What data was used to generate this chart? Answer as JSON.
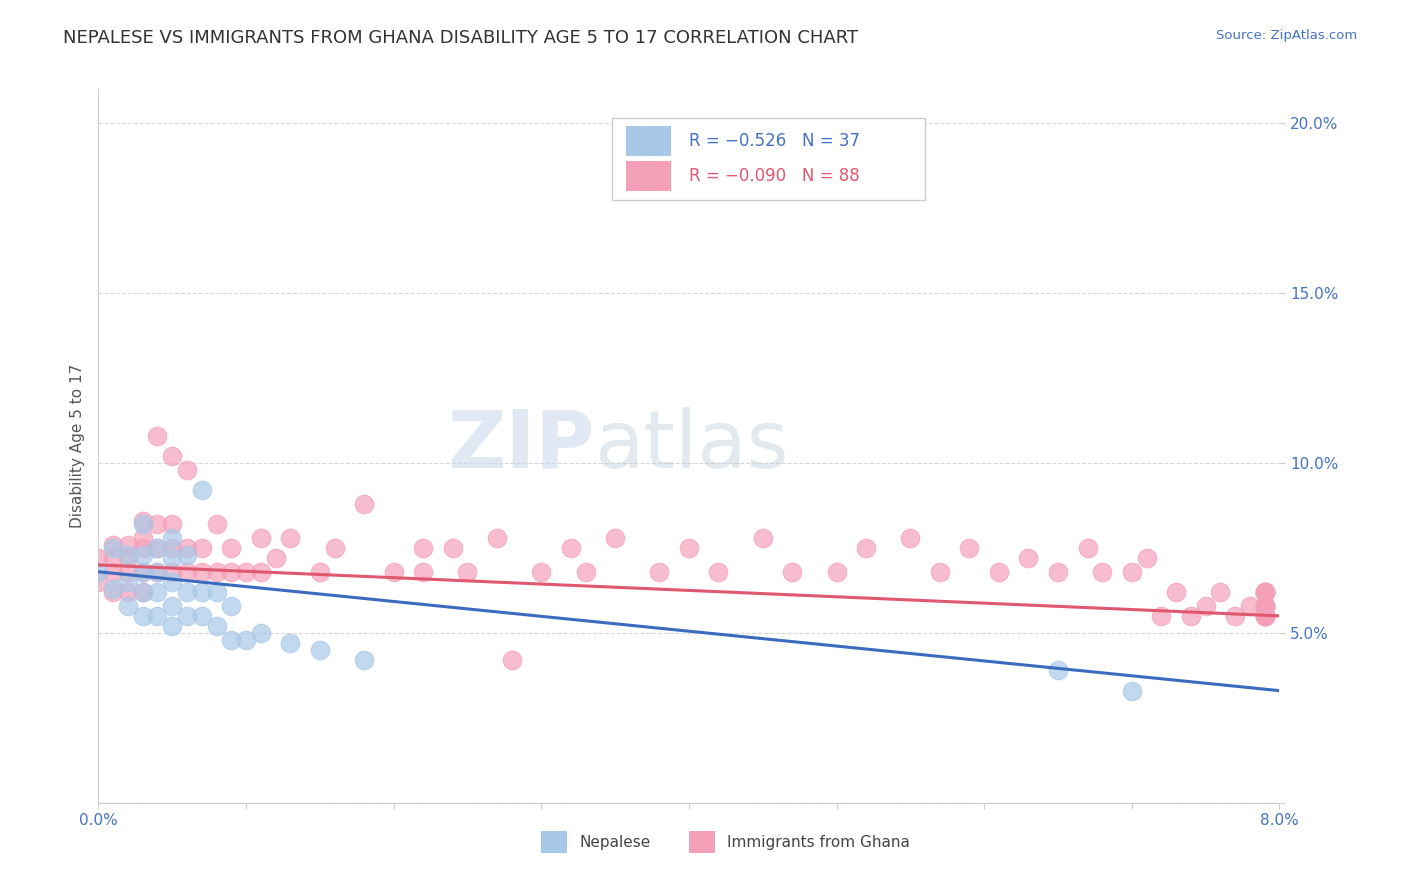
{
  "title": "NEPALESE VS IMMIGRANTS FROM GHANA DISABILITY AGE 5 TO 17 CORRELATION CHART",
  "source_text": "Source: ZipAtlas.com",
  "ylabel": "Disability Age 5 to 17",
  "xlim": [
    0.0,
    0.08
  ],
  "ylim": [
    0.0,
    0.21
  ],
  "legend_label1": "R = −0.526   N = 37",
  "legend_label2": "R = −0.090   N = 88",
  "legend_names": [
    "Nepalese",
    "Immigrants from Ghana"
  ],
  "blue_scatter_color": "#a8c8e8",
  "pink_scatter_color": "#f4a0b8",
  "blue_line_color": "#3a6bbf",
  "pink_line_color": "#e05870",
  "watermark_color": "#c8d8ea",
  "grid_color": "#d8d8d8",
  "title_fontsize": 13,
  "axis_label_fontsize": 11,
  "tick_fontsize": 11,
  "tick_color": "#4472c4",
  "title_color": "#333333",
  "nepalese_x": [
    0.0,
    0.001,
    0.001,
    0.002,
    0.002,
    0.002,
    0.003,
    0.003,
    0.003,
    0.003,
    0.003,
    0.004,
    0.004,
    0.004,
    0.004,
    0.005,
    0.005,
    0.005,
    0.005,
    0.005,
    0.006,
    0.006,
    0.006,
    0.007,
    0.007,
    0.007,
    0.008,
    0.008,
    0.009,
    0.009,
    0.01,
    0.011,
    0.013,
    0.015,
    0.018,
    0.065,
    0.07
  ],
  "nepalese_y": [
    0.068,
    0.063,
    0.075,
    0.058,
    0.065,
    0.073,
    0.055,
    0.062,
    0.068,
    0.073,
    0.082,
    0.055,
    0.062,
    0.068,
    0.075,
    0.052,
    0.058,
    0.065,
    0.072,
    0.078,
    0.055,
    0.062,
    0.073,
    0.055,
    0.062,
    0.092,
    0.052,
    0.062,
    0.048,
    0.058,
    0.048,
    0.05,
    0.047,
    0.045,
    0.042,
    0.039,
    0.033
  ],
  "ghana_x": [
    0.0,
    0.0,
    0.001,
    0.001,
    0.001,
    0.001,
    0.002,
    0.002,
    0.002,
    0.002,
    0.003,
    0.003,
    0.003,
    0.003,
    0.003,
    0.004,
    0.004,
    0.004,
    0.004,
    0.005,
    0.005,
    0.005,
    0.005,
    0.006,
    0.006,
    0.006,
    0.007,
    0.007,
    0.008,
    0.008,
    0.009,
    0.009,
    0.01,
    0.011,
    0.011,
    0.012,
    0.013,
    0.015,
    0.016,
    0.018,
    0.02,
    0.022,
    0.022,
    0.024,
    0.025,
    0.027,
    0.028,
    0.03,
    0.032,
    0.033,
    0.035,
    0.038,
    0.04,
    0.042,
    0.045,
    0.047,
    0.05,
    0.052,
    0.055,
    0.057,
    0.059,
    0.061,
    0.063,
    0.065,
    0.067,
    0.068,
    0.07,
    0.071,
    0.072,
    0.073,
    0.074,
    0.075,
    0.076,
    0.077,
    0.078,
    0.079,
    0.079,
    0.079,
    0.079,
    0.079,
    0.079,
    0.079,
    0.079,
    0.079,
    0.079,
    0.079,
    0.079,
    0.079
  ],
  "ghana_y": [
    0.065,
    0.072,
    0.062,
    0.068,
    0.072,
    0.076,
    0.062,
    0.068,
    0.072,
    0.076,
    0.062,
    0.068,
    0.075,
    0.078,
    0.083,
    0.068,
    0.075,
    0.082,
    0.108,
    0.068,
    0.075,
    0.082,
    0.102,
    0.068,
    0.075,
    0.098,
    0.068,
    0.075,
    0.068,
    0.082,
    0.068,
    0.075,
    0.068,
    0.068,
    0.078,
    0.072,
    0.078,
    0.068,
    0.075,
    0.088,
    0.068,
    0.075,
    0.068,
    0.075,
    0.068,
    0.078,
    0.042,
    0.068,
    0.075,
    0.068,
    0.078,
    0.068,
    0.075,
    0.068,
    0.078,
    0.068,
    0.068,
    0.075,
    0.078,
    0.068,
    0.075,
    0.068,
    0.072,
    0.068,
    0.075,
    0.068,
    0.068,
    0.072,
    0.055,
    0.062,
    0.055,
    0.058,
    0.062,
    0.055,
    0.058,
    0.062,
    0.055,
    0.058,
    0.062,
    0.055,
    0.058,
    0.062,
    0.055,
    0.058,
    0.062,
    0.055,
    0.058,
    0.062
  ]
}
